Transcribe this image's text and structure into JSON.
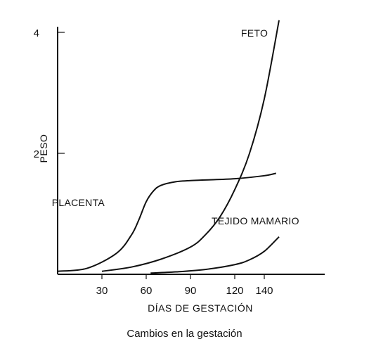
{
  "chart_data": {
    "type": "line",
    "caption": "Cambios en la gestación",
    "xlabel": "DÍAS DE GESTACIÓN",
    "ylabel": "PESO",
    "xlim": [
      0,
      160
    ],
    "ylim": [
      0,
      4.3
    ],
    "x_ticks": [
      30,
      60,
      90,
      120,
      140
    ],
    "y_ticks": [
      2,
      4
    ],
    "grid": false,
    "series": [
      {
        "name": "FETO",
        "x": [
          30,
          50,
          70,
          90,
          100,
          110,
          120,
          130,
          140,
          150
        ],
        "y": [
          0.05,
          0.12,
          0.25,
          0.45,
          0.65,
          0.95,
          1.4,
          2.0,
          2.9,
          4.2
        ]
      },
      {
        "name": "PLACENTA",
        "x": [
          0,
          20,
          40,
          50,
          55,
          60,
          65,
          70,
          80,
          90,
          100,
          120,
          140,
          148
        ],
        "y": [
          0.05,
          0.1,
          0.35,
          0.65,
          0.9,
          1.2,
          1.38,
          1.47,
          1.53,
          1.55,
          1.56,
          1.58,
          1.63,
          1.67
        ]
      },
      {
        "name": "TEJIDO MAMARIO",
        "x": [
          63,
          80,
          100,
          120,
          130,
          140,
          150
        ],
        "y": [
          0.02,
          0.04,
          0.08,
          0.16,
          0.24,
          0.38,
          0.62
        ]
      }
    ]
  }
}
